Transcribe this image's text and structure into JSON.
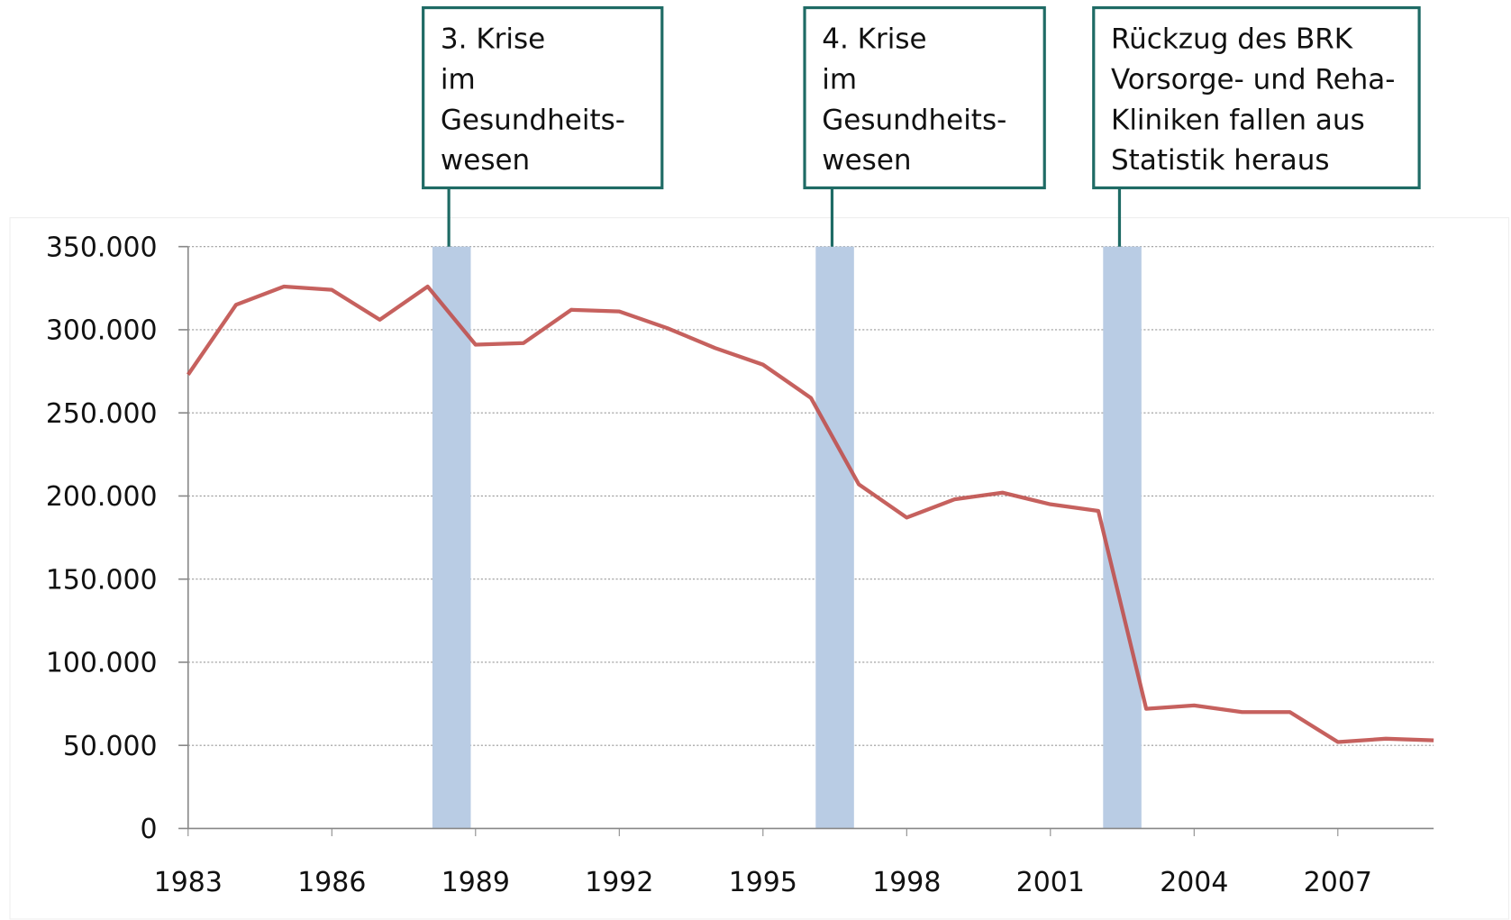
{
  "chart_data": {
    "type": "line",
    "x": [
      1983,
      1984,
      1985,
      1986,
      1987,
      1988,
      1989,
      1990,
      1991,
      1992,
      1993,
      1994,
      1995,
      1996,
      1997,
      1998,
      1999,
      2000,
      2001,
      2002,
      2003,
      2004,
      2005,
      2006,
      2007,
      2008,
      2009
    ],
    "series": [
      {
        "color": "#c0504d",
        "values": [
          273000,
          315000,
          326000,
          324000,
          306000,
          326000,
          291000,
          292000,
          312000,
          311000,
          301000,
          289000,
          279000,
          259000,
          207000,
          187000,
          198000,
          202000,
          195000,
          191000,
          72000,
          74000,
          70000,
          70000,
          52000,
          54000,
          53000
        ]
      }
    ],
    "xlim": [
      1983,
      2009
    ],
    "xticks": [
      1983,
      1986,
      1989,
      1992,
      1995,
      1998,
      2001,
      2004,
      2007
    ],
    "ylim": [
      0,
      350000
    ],
    "yticks": [
      0,
      {
        "value": 50000,
        "label": "50.000"
      },
      {
        "value": 100000,
        "label": "100.000"
      },
      {
        "value": 150000,
        "label": "150.000"
      },
      {
        "value": 200000,
        "label": "200.000"
      },
      {
        "value": 250000,
        "label": "250.000"
      },
      {
        "value": 300000,
        "label": "300.000"
      },
      {
        "value": 350000,
        "label": "350.000"
      }
    ],
    "grid": true,
    "band_color": "#b9cce4",
    "annotations": [
      {
        "text": [
          "3. Krise",
          "im",
          "Gesundheits-",
          "wesen"
        ],
        "x0": 1988.1,
        "x1": 1988.9
      },
      {
        "text": [
          "4. Krise",
          "im",
          "Gesundheits-",
          "wesen"
        ],
        "x0": 1996.1,
        "x1": 1996.9
      },
      {
        "text": [
          "Rückzug des BRK",
          "Vorsorge- und Reha-",
          "Kliniken fallen aus",
          "Statistik heraus"
        ],
        "x0": 2002.1,
        "x1": 2002.9
      }
    ]
  }
}
